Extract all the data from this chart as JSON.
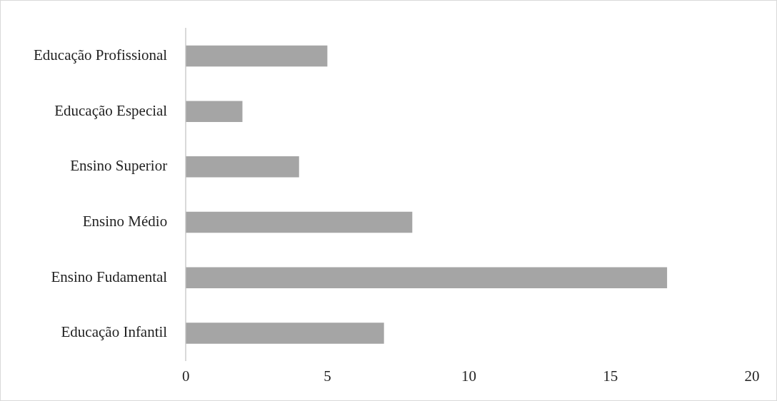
{
  "chart_data": {
    "type": "bar",
    "orientation": "horizontal",
    "categories": [
      "Educação Profissional",
      "Educação Especial",
      "Ensino Superior",
      "Ensino Médio",
      "Ensino Fudamental",
      "Educação Infantil"
    ],
    "values": [
      5,
      2,
      4,
      8,
      17,
      7
    ],
    "color": "#a5a5a5",
    "xlim": [
      0,
      20
    ],
    "xticks": [
      0,
      5,
      10,
      15,
      20
    ]
  }
}
